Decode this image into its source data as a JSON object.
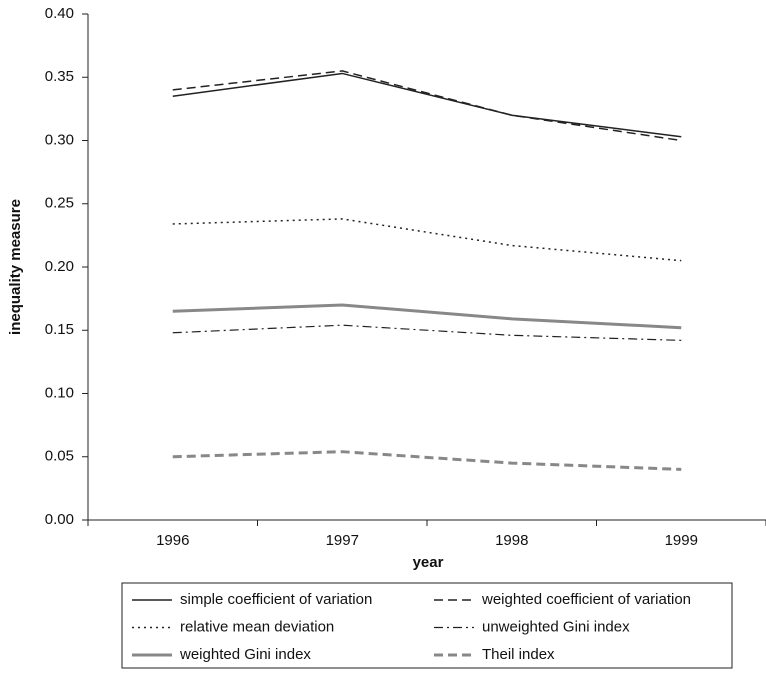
{
  "chart_data": {
    "type": "line",
    "x_label": "year",
    "y_label": "inequality measure",
    "categories": [
      "1996",
      "1997",
      "1998",
      "1999"
    ],
    "ylim": [
      0,
      0.4
    ],
    "yticks": [
      {
        "value": 0,
        "label": "0.00"
      },
      {
        "value": 0.05,
        "label": "0.05"
      },
      {
        "value": 0.1,
        "label": "0.10"
      },
      {
        "value": 0.15,
        "label": "0.15"
      },
      {
        "value": 0.2,
        "label": "0.20"
      },
      {
        "value": 0.25,
        "label": "0.25"
      },
      {
        "value": 0.3,
        "label": "0.30"
      },
      {
        "value": 0.35,
        "label": "0.35"
      },
      {
        "value": 0.4,
        "label": "0.40"
      }
    ],
    "grid": false,
    "legend": "bottom",
    "series": [
      {
        "name": "simple coefficient of variation",
        "color": "#222222",
        "dash": "solid",
        "width": 1.5,
        "values": [
          0.335,
          0.353,
          0.32,
          0.303
        ]
      },
      {
        "name": "weighted coefficient of variation",
        "color": "#222222",
        "dash": "dashed",
        "width": 1.5,
        "values": [
          0.34,
          0.355,
          0.32,
          0.3
        ]
      },
      {
        "name": "relative mean deviation",
        "color": "#222222",
        "dash": "dotted",
        "width": 1.5,
        "values": [
          0.234,
          0.238,
          0.217,
          0.205
        ]
      },
      {
        "name": "unweighted Gini index",
        "color": "#222222",
        "dash": "dashdot",
        "width": 1.2,
        "values": [
          0.148,
          0.154,
          0.146,
          0.142
        ]
      },
      {
        "name": "weighted Gini index",
        "color": "#888888",
        "dash": "solid",
        "width": 3,
        "values": [
          0.165,
          0.17,
          0.159,
          0.152
        ]
      },
      {
        "name": "Theil index",
        "color": "#888888",
        "dash": "dashed",
        "width": 3,
        "values": [
          0.05,
          0.054,
          0.045,
          0.04
        ]
      }
    ]
  }
}
